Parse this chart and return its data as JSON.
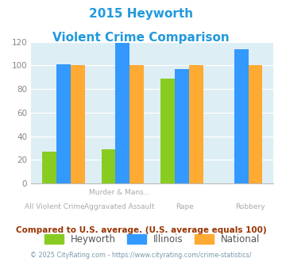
{
  "title_line1": "2015 Heyworth",
  "title_line2": "Violent Crime Comparison",
  "cat_labels_top": [
    "",
    "Murder & Mans...",
    "",
    ""
  ],
  "cat_labels_bot": [
    "All Violent Crime",
    "Aggravated Assault",
    "Rape",
    "Robbery"
  ],
  "heyworth": [
    27,
    29,
    89,
    0
  ],
  "illinois": [
    101,
    119,
    97,
    114
  ],
  "national": [
    100,
    100,
    100,
    100
  ],
  "colors": {
    "heyworth": "#88cc22",
    "illinois": "#3399ff",
    "national": "#ffaa33"
  },
  "ylim": [
    0,
    120
  ],
  "yticks": [
    0,
    20,
    40,
    60,
    80,
    100,
    120
  ],
  "footer_text": "Compared to U.S. average. (U.S. average equals 100)",
  "copyright_text": "© 2025 CityRating.com - https://www.cityrating.com/crime-statistics/",
  "title_color": "#2299dd",
  "footer_color": "#993300",
  "copyright_color": "#7799aa",
  "bg_color": "#ffffff",
  "plot_bg": "#ddeef4"
}
